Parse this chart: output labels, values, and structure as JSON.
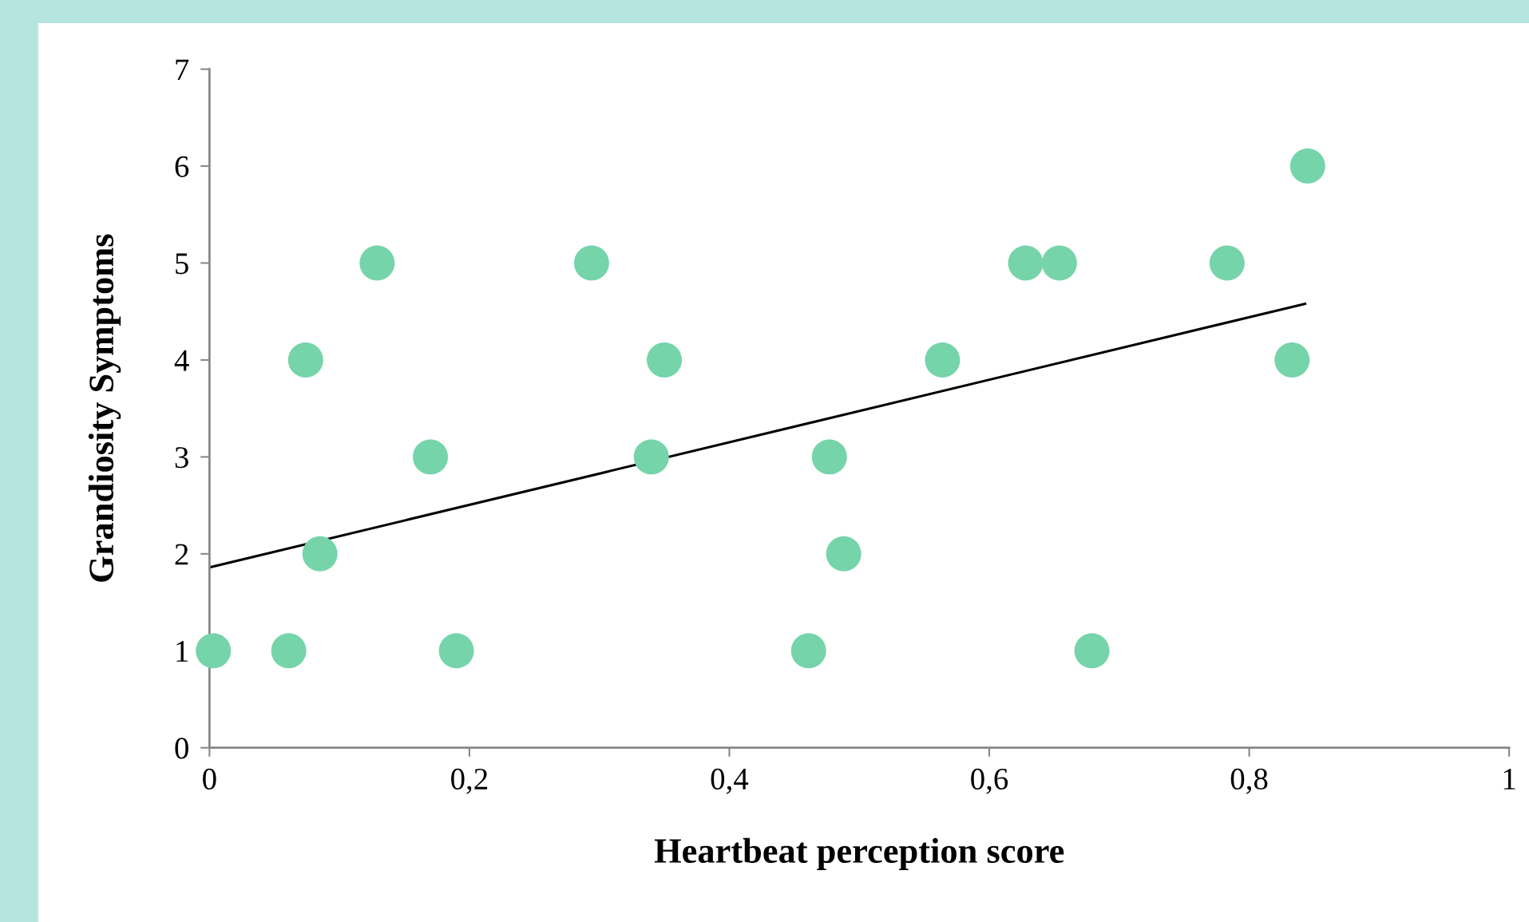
{
  "chart_data": {
    "type": "scatter",
    "xlabel": "Heartbeat perception score",
    "ylabel": "Grandiosity Symptoms",
    "xlim": [
      0,
      1
    ],
    "ylim": [
      0,
      7
    ],
    "xticks": [
      0,
      {
        "value": 0.2,
        "label": "0,2"
      },
      {
        "value": 0.4,
        "label": "0,4"
      },
      {
        "value": 0.6,
        "label": "0,6"
      },
      {
        "value": 0.8,
        "label": "0,8"
      },
      1
    ],
    "yticks": [
      0,
      1,
      2,
      3,
      4,
      5,
      6,
      7
    ],
    "grid": false,
    "legend": false,
    "series": [
      {
        "marker": "circle",
        "color": "#76d4aa",
        "x": [
          0.003,
          0.061,
          0.074,
          0.085,
          0.129,
          0.17,
          0.19,
          0.294,
          0.34,
          0.35,
          0.461,
          0.477,
          0.488,
          0.564,
          0.628,
          0.654,
          0.679,
          0.783,
          0.833,
          0.845
        ],
        "values": [
          1,
          1,
          4,
          2,
          5,
          3,
          1,
          5,
          3,
          4,
          1,
          3,
          2,
          4,
          5,
          5,
          1,
          5,
          4,
          6
        ]
      },
      {
        "type": "line",
        "color": "#000000",
        "x": [
          0,
          0.843
        ],
        "values": [
          1.86,
          4.58
        ]
      }
    ]
  }
}
